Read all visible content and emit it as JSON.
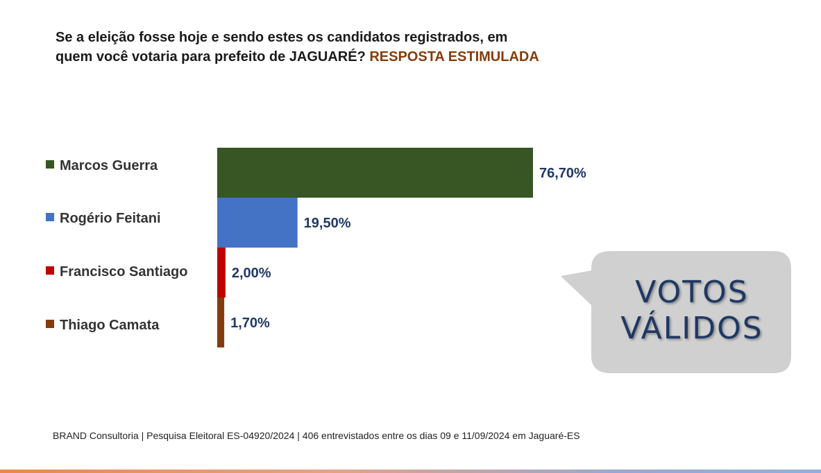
{
  "title": {
    "line1": "Se a eleição fosse hoje e sendo estes os candidatos  registrados,  em",
    "line2": "quem você votaria para prefeito de JAGUARÉ? ",
    "highlight": "RESPOSTA ESTIMULADA",
    "highlight_color": "#843c0c"
  },
  "chart_data": {
    "type": "bar",
    "orientation": "horizontal",
    "categories": [
      "Marcos Guerra",
      "Rogério Feitani",
      "Francisco Santiago",
      "Thiago Camata"
    ],
    "values": [
      76.7,
      19.5,
      2.0,
      1.7
    ],
    "data_labels": [
      "76,70%",
      "19,50%",
      "2,00%",
      "1,70%"
    ],
    "colors": [
      "#375623",
      "#4472c4",
      "#c00000",
      "#843c0c"
    ],
    "legend_position": "left",
    "label_color": "#1f3864",
    "grid": false
  },
  "callout": {
    "line1": "VOTOS",
    "line2": "VÁLIDOS",
    "bg_color": "#d0d0d0",
    "text_color": "#1f3864"
  },
  "footer": "BRAND Consultoria | Pesquisa Eleitoral ES-04920/2024 |  406 entrevistados entre os dias 09 e 11/09/2024 em Jaguaré-ES"
}
